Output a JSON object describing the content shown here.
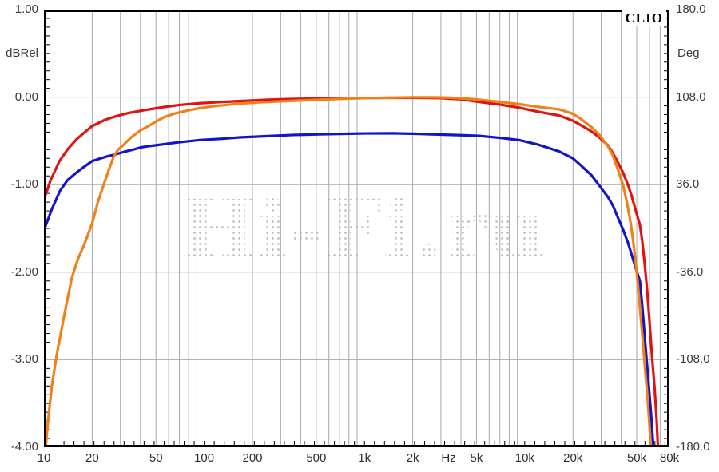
{
  "app": {
    "brand": "CLIO"
  },
  "watermark": {
    "text": "Hi-Fi.ru"
  },
  "axes": {
    "left": {
      "unit": "dBRel",
      "ticks": [
        {
          "label": "1.00",
          "value": 1
        },
        {
          "label": "0.00",
          "value": 0
        },
        {
          "label": "-1.00",
          "value": -1
        },
        {
          "label": "-2.00",
          "value": -2
        },
        {
          "label": "-3.00",
          "value": -3
        },
        {
          "label": "-4.00",
          "value": -4
        }
      ]
    },
    "right": {
      "unit": "Deg",
      "ticks": [
        {
          "label": "180.0",
          "value": 180
        },
        {
          "label": "108.0",
          "value": 108
        },
        {
          "label": "36.0",
          "value": 36
        },
        {
          "label": "-36.0",
          "value": -36
        },
        {
          "label": "-108.0",
          "value": -108
        },
        {
          "label": "-180.0",
          "value": -180
        }
      ]
    },
    "x": {
      "unit": "Hz",
      "ticks": [
        {
          "label": "10",
          "f": 10
        },
        {
          "label": "20",
          "f": 20
        },
        {
          "label": "50",
          "f": 50
        },
        {
          "label": "100",
          "f": 100
        },
        {
          "label": "200",
          "f": 200
        },
        {
          "label": "500",
          "f": 500
        },
        {
          "label": "1k",
          "f": 1000
        },
        {
          "label": "2k",
          "f": 2000
        },
        {
          "label": "Hz",
          "f": 3350,
          "is_unit": true
        },
        {
          "label": "5k",
          "f": 5000
        },
        {
          "label": "10k",
          "f": 10000
        },
        {
          "label": "20k",
          "f": 20000
        },
        {
          "label": "50k",
          "f": 50000
        },
        {
          "label": "80k",
          "f": 80000
        }
      ]
    }
  },
  "colors": {
    "grid": "#a8a8a8",
    "border": "#000000",
    "red_curve": "#e01212",
    "orange_curve": "#f08119",
    "blue_curve": "#1414cc",
    "watermark_dots": "#c4c4c4"
  },
  "chart_data": {
    "type": "line",
    "title": "",
    "x_axis": {
      "label": "Hz",
      "scale": "log",
      "min": 10,
      "max": 80000
    },
    "y_axis_left": {
      "label": "dBRel",
      "min": -4.0,
      "max": 1.0,
      "major_step": 1.0
    },
    "y_axis_right": {
      "label": "Deg",
      "min": -180.0,
      "max": 180.0,
      "major_step": 72.0
    },
    "grid": true,
    "legend_position": "none",
    "annotations": [
      "CLIO",
      "Hi-Fi.ru"
    ],
    "series": [
      {
        "name": "red-curve",
        "color": "#e01212",
        "unit": "dBRel",
        "points": [
          [
            10,
            -1.17
          ],
          [
            11,
            -0.95
          ],
          [
            12.5,
            -0.73
          ],
          [
            14,
            -0.6
          ],
          [
            16,
            -0.48
          ],
          [
            18,
            -0.4
          ],
          [
            20,
            -0.33
          ],
          [
            24,
            -0.26
          ],
          [
            28,
            -0.22
          ],
          [
            34,
            -0.18
          ],
          [
            42,
            -0.15
          ],
          [
            53,
            -0.12
          ],
          [
            70,
            -0.09
          ],
          [
            94,
            -0.07
          ],
          [
            130,
            -0.055
          ],
          [
            170,
            -0.045
          ],
          [
            250,
            -0.03
          ],
          [
            360,
            -0.022
          ],
          [
            500,
            -0.017
          ],
          [
            700,
            -0.013
          ],
          [
            1000,
            -0.01
          ],
          [
            1500,
            -0.008
          ],
          [
            2200,
            -0.008
          ],
          [
            3000,
            -0.012
          ],
          [
            4000,
            -0.025
          ],
          [
            5200,
            -0.055
          ],
          [
            7000,
            -0.085
          ],
          [
            9200,
            -0.12
          ],
          [
            12000,
            -0.165
          ],
          [
            16400,
            -0.21
          ],
          [
            20000,
            -0.27
          ],
          [
            22400,
            -0.32
          ],
          [
            26000,
            -0.39
          ],
          [
            29200,
            -0.46
          ],
          [
            33000,
            -0.55
          ],
          [
            35500,
            -0.64
          ],
          [
            38000,
            -0.74
          ],
          [
            41000,
            -0.86
          ],
          [
            44000,
            -1.0
          ],
          [
            46300,
            -1.12
          ],
          [
            49000,
            -1.28
          ],
          [
            52300,
            -1.46
          ],
          [
            54000,
            -1.63
          ],
          [
            56000,
            -1.9
          ],
          [
            58000,
            -2.2
          ],
          [
            60000,
            -2.55
          ],
          [
            62000,
            -2.92
          ],
          [
            64600,
            -3.32
          ],
          [
            66500,
            -3.68
          ],
          [
            68000,
            -4.05
          ]
        ]
      },
      {
        "name": "blue-curve",
        "color": "#1414cc",
        "unit": "dBRel",
        "points": [
          [
            10,
            -1.52
          ],
          [
            11.2,
            -1.28
          ],
          [
            12.6,
            -1.07
          ],
          [
            14,
            -0.95
          ],
          [
            16,
            -0.86
          ],
          [
            18,
            -0.79
          ],
          [
            20,
            -0.73
          ],
          [
            22.5,
            -0.7
          ],
          [
            25,
            -0.675
          ],
          [
            27.2,
            -0.66
          ],
          [
            31.6,
            -0.625
          ],
          [
            36,
            -0.6
          ],
          [
            40,
            -0.575
          ],
          [
            45,
            -0.56
          ],
          [
            50,
            -0.55
          ],
          [
            60,
            -0.53
          ],
          [
            70,
            -0.515
          ],
          [
            94,
            -0.49
          ],
          [
            130,
            -0.475
          ],
          [
            166,
            -0.46
          ],
          [
            250,
            -0.445
          ],
          [
            360,
            -0.432
          ],
          [
            520,
            -0.425
          ],
          [
            700,
            -0.42
          ],
          [
            1000,
            -0.415
          ],
          [
            1500,
            -0.413
          ],
          [
            2000,
            -0.418
          ],
          [
            3000,
            -0.428
          ],
          [
            4000,
            -0.435
          ],
          [
            5200,
            -0.443
          ],
          [
            7000,
            -0.465
          ],
          [
            9200,
            -0.49
          ],
          [
            12000,
            -0.54
          ],
          [
            16400,
            -0.62
          ],
          [
            20000,
            -0.7
          ],
          [
            22400,
            -0.78
          ],
          [
            26000,
            -0.89
          ],
          [
            29200,
            -1.01
          ],
          [
            33000,
            -1.14
          ],
          [
            35500,
            -1.24
          ],
          [
            38000,
            -1.37
          ],
          [
            41000,
            -1.51
          ],
          [
            44000,
            -1.66
          ],
          [
            46300,
            -1.79
          ],
          [
            49000,
            -1.94
          ],
          [
            52300,
            -2.1
          ],
          [
            54300,
            -2.42
          ],
          [
            56300,
            -2.78
          ],
          [
            58500,
            -3.15
          ],
          [
            61000,
            -3.55
          ],
          [
            63800,
            -4.05
          ]
        ]
      },
      {
        "name": "orange-curve",
        "color": "#f08119",
        "unit": "dBRel",
        "points": [
          [
            10.2,
            -4.05
          ],
          [
            10.6,
            -3.7
          ],
          [
            11.2,
            -3.3
          ],
          [
            12,
            -2.95
          ],
          [
            12.8,
            -2.68
          ],
          [
            13.7,
            -2.4
          ],
          [
            14.9,
            -2.07
          ],
          [
            16.2,
            -1.86
          ],
          [
            17.7,
            -1.7
          ],
          [
            19,
            -1.55
          ],
          [
            20,
            -1.44
          ],
          [
            21.7,
            -1.2
          ],
          [
            23.6,
            -1.0
          ],
          [
            25.4,
            -0.83
          ],
          [
            27.2,
            -0.68
          ],
          [
            29,
            -0.6
          ],
          [
            31.6,
            -0.54
          ],
          [
            35,
            -0.46
          ],
          [
            40,
            -0.38
          ],
          [
            45,
            -0.33
          ],
          [
            50,
            -0.28
          ],
          [
            56,
            -0.23
          ],
          [
            66,
            -0.185
          ],
          [
            80,
            -0.15
          ],
          [
            94,
            -0.125
          ],
          [
            120,
            -0.1
          ],
          [
            166,
            -0.075
          ],
          [
            220,
            -0.06
          ],
          [
            300,
            -0.048
          ],
          [
            400,
            -0.038
          ],
          [
            520,
            -0.03
          ],
          [
            700,
            -0.02
          ],
          [
            1000,
            -0.012
          ],
          [
            1500,
            -0.006
          ],
          [
            2000,
            -0.002
          ],
          [
            2600,
            -0.002
          ],
          [
            3400,
            -0.006
          ],
          [
            4200,
            -0.016
          ],
          [
            5200,
            -0.03
          ],
          [
            7000,
            -0.055
          ],
          [
            9200,
            -0.08
          ],
          [
            12000,
            -0.11
          ],
          [
            16400,
            -0.14
          ],
          [
            20000,
            -0.19
          ],
          [
            22400,
            -0.25
          ],
          [
            26000,
            -0.34
          ],
          [
            29200,
            -0.43
          ],
          [
            33000,
            -0.56
          ],
          [
            35500,
            -0.67
          ],
          [
            38000,
            -0.82
          ],
          [
            41000,
            -1.0
          ],
          [
            43500,
            -1.21
          ],
          [
            46000,
            -1.46
          ],
          [
            48000,
            -1.71
          ],
          [
            50000,
            -2.0
          ],
          [
            52000,
            -2.35
          ],
          [
            54000,
            -2.7
          ],
          [
            56000,
            -3.05
          ],
          [
            58500,
            -3.45
          ],
          [
            61500,
            -4.05
          ]
        ]
      }
    ]
  }
}
